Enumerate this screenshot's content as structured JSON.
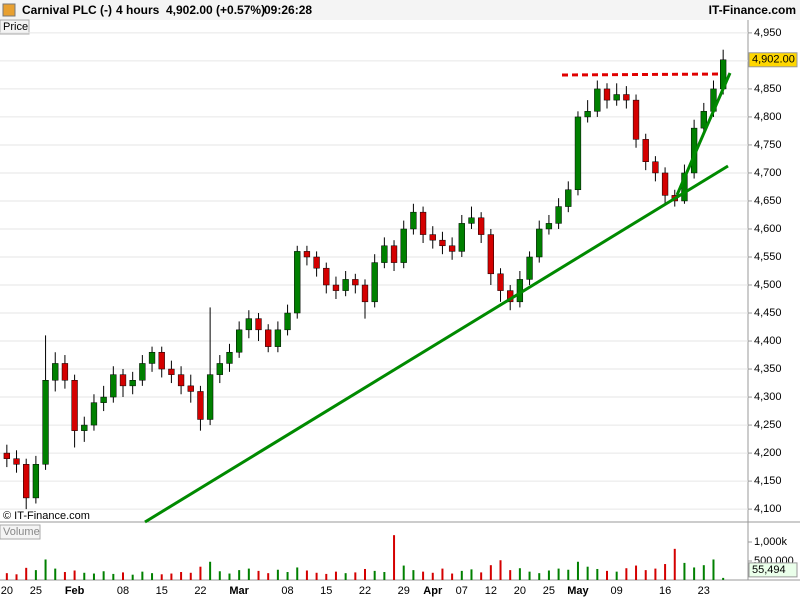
{
  "header": {
    "name": "Carnival PLC (-)",
    "interval": "4 hours",
    "change": "4,902.00 (+0.57%)",
    "time": "09:26:28",
    "brand": "IT-Finance.com"
  },
  "chart_data": [
    {
      "type": "candlestick",
      "title": "Price",
      "watermark": "© IT-Finance.com",
      "last_label": "4,902.00",
      "up_color": "#008000",
      "down_color": "#d40000",
      "grid": true,
      "categories": [
        "20",
        null,
        null,
        "25",
        null,
        null,
        null,
        "Feb",
        null,
        null,
        null,
        null,
        "08",
        null,
        null,
        null,
        "15",
        null,
        null,
        null,
        "22",
        null,
        null,
        null,
        "Mar",
        null,
        null,
        null,
        null,
        "08",
        null,
        null,
        null,
        "15",
        null,
        null,
        null,
        "22",
        null,
        null,
        null,
        "29",
        null,
        null,
        "Apr",
        null,
        null,
        "07",
        null,
        null,
        "12",
        null,
        null,
        "20",
        null,
        null,
        "25",
        null,
        null,
        "May",
        null,
        null,
        null,
        "09",
        null,
        null,
        null,
        null,
        "16",
        null,
        null,
        null,
        "23",
        null,
        null
      ],
      "open": [
        4200,
        4190,
        4180,
        4120,
        4180,
        4330,
        4360,
        4330,
        4240,
        4250,
        4290,
        4300,
        4340,
        4320,
        4330,
        4360,
        4380,
        4350,
        4340,
        4320,
        4310,
        4260,
        4340,
        4360,
        4380,
        4420,
        4440,
        4420,
        4390,
        4420,
        4450,
        4560,
        4550,
        4530,
        4500,
        4490,
        4510,
        4500,
        4470,
        4540,
        4570,
        4540,
        4600,
        4630,
        4590,
        4580,
        4570,
        4560,
        4610,
        4620,
        4590,
        4520,
        4490,
        4470,
        4510,
        4550,
        4600,
        4610,
        4640,
        4670,
        4800,
        4810,
        4850,
        4830,
        4840,
        4830,
        4760,
        4720,
        4700,
        4660,
        4650,
        4700,
        4780,
        4810,
        4850
      ],
      "high": [
        4215,
        4205,
        4190,
        4195,
        4410,
        4380,
        4375,
        4340,
        4265,
        4305,
        4320,
        4355,
        4350,
        4345,
        4375,
        4390,
        4390,
        4365,
        4355,
        4340,
        4320,
        4460,
        4375,
        4395,
        4435,
        4455,
        4450,
        4430,
        4435,
        4465,
        4570,
        4570,
        4560,
        4540,
        4515,
        4525,
        4520,
        4510,
        4555,
        4585,
        4580,
        4615,
        4645,
        4640,
        4605,
        4595,
        4585,
        4625,
        4640,
        4630,
        4600,
        4530,
        4500,
        4525,
        4560,
        4615,
        4625,
        4655,
        4685,
        4810,
        4830,
        4865,
        4860,
        4860,
        4855,
        4840,
        4770,
        4730,
        4710,
        4670,
        4715,
        4795,
        4825,
        4865,
        4920
      ],
      "low": [
        4175,
        4165,
        4100,
        4110,
        4170,
        4310,
        4315,
        4210,
        4220,
        4240,
        4275,
        4290,
        4300,
        4305,
        4320,
        4345,
        4335,
        4325,
        4305,
        4290,
        4240,
        4250,
        4325,
        4345,
        4370,
        4405,
        4400,
        4380,
        4380,
        4410,
        4440,
        4535,
        4515,
        4485,
        4475,
        4480,
        4485,
        4440,
        4460,
        4530,
        4525,
        4530,
        4590,
        4575,
        4565,
        4555,
        4545,
        4550,
        4600,
        4575,
        4500,
        4470,
        4455,
        4460,
        4500,
        4540,
        4590,
        4600,
        4630,
        4660,
        4790,
        4800,
        4815,
        4820,
        4815,
        4745,
        4705,
        4685,
        4645,
        4640,
        4645,
        4690,
        4770,
        4800,
        4840
      ],
      "close": [
        4190,
        4180,
        4120,
        4180,
        4330,
        4360,
        4330,
        4240,
        4250,
        4290,
        4300,
        4340,
        4320,
        4330,
        4360,
        4380,
        4350,
        4340,
        4320,
        4310,
        4260,
        4340,
        4360,
        4380,
        4420,
        4440,
        4420,
        4390,
        4420,
        4450,
        4560,
        4550,
        4530,
        4500,
        4490,
        4510,
        4500,
        4470,
        4540,
        4570,
        4540,
        4600,
        4630,
        4590,
        4580,
        4570,
        4560,
        4610,
        4620,
        4590,
        4520,
        4490,
        4470,
        4510,
        4550,
        4600,
        4610,
        4640,
        4670,
        4800,
        4810,
        4850,
        4830,
        4840,
        4830,
        4760,
        4720,
        4700,
        4660,
        4650,
        4700,
        4780,
        4810,
        4850,
        4902
      ],
      "ylim": [
        4077,
        4973
      ],
      "yticks": [
        {
          "value": 4100,
          "label": "4,100"
        },
        {
          "value": 4150,
          "label": "4,150"
        },
        {
          "value": 4200,
          "label": "4,200"
        },
        {
          "value": 4250,
          "label": "4,250"
        },
        {
          "value": 4300,
          "label": "4,300"
        },
        {
          "value": 4350,
          "label": "4,350"
        },
        {
          "value": 4400,
          "label": "4,400"
        },
        {
          "value": 4450,
          "label": "4,450"
        },
        {
          "value": 4500,
          "label": "4,500"
        },
        {
          "value": 4550,
          "label": "4,550"
        },
        {
          "value": 4600,
          "label": "4,600"
        },
        {
          "value": 4650,
          "label": "4,650"
        },
        {
          "value": 4700,
          "label": "4,700"
        },
        {
          "value": 4750,
          "label": "4,750"
        },
        {
          "value": 4800,
          "label": "4,800"
        },
        {
          "value": 4850,
          "label": "4,850"
        },
        {
          "value": 4900,
          "label": "4,900"
        },
        {
          "value": 4950,
          "label": "4,950"
        }
      ]
    },
    {
      "type": "volume",
      "title": "Volume",
      "last_label": "55,494",
      "values": [
        180000,
        150000,
        320000,
        260000,
        540000,
        300000,
        210000,
        250000,
        190000,
        170000,
        230000,
        160000,
        200000,
        140000,
        220000,
        180000,
        150000,
        170000,
        210000,
        190000,
        350000,
        480000,
        230000,
        170000,
        260000,
        300000,
        240000,
        180000,
        270000,
        210000,
        330000,
        250000,
        190000,
        160000,
        220000,
        180000,
        200000,
        290000,
        240000,
        210000,
        1180000,
        380000,
        260000,
        220000,
        190000,
        300000,
        170000,
        240000,
        280000,
        200000,
        390000,
        520000,
        260000,
        310000,
        220000,
        180000,
        250000,
        300000,
        270000,
        480000,
        350000,
        290000,
        240000,
        220000,
        310000,
        380000,
        260000,
        300000,
        420000,
        820000,
        450000,
        330000,
        390000,
        540000,
        55494
      ],
      "ylim": [
        0,
        1500000
      ],
      "yticks": [
        {
          "value": 500000,
          "label": "500,000"
        },
        {
          "value": 1000000,
          "label": "1,000k"
        }
      ]
    }
  ]
}
